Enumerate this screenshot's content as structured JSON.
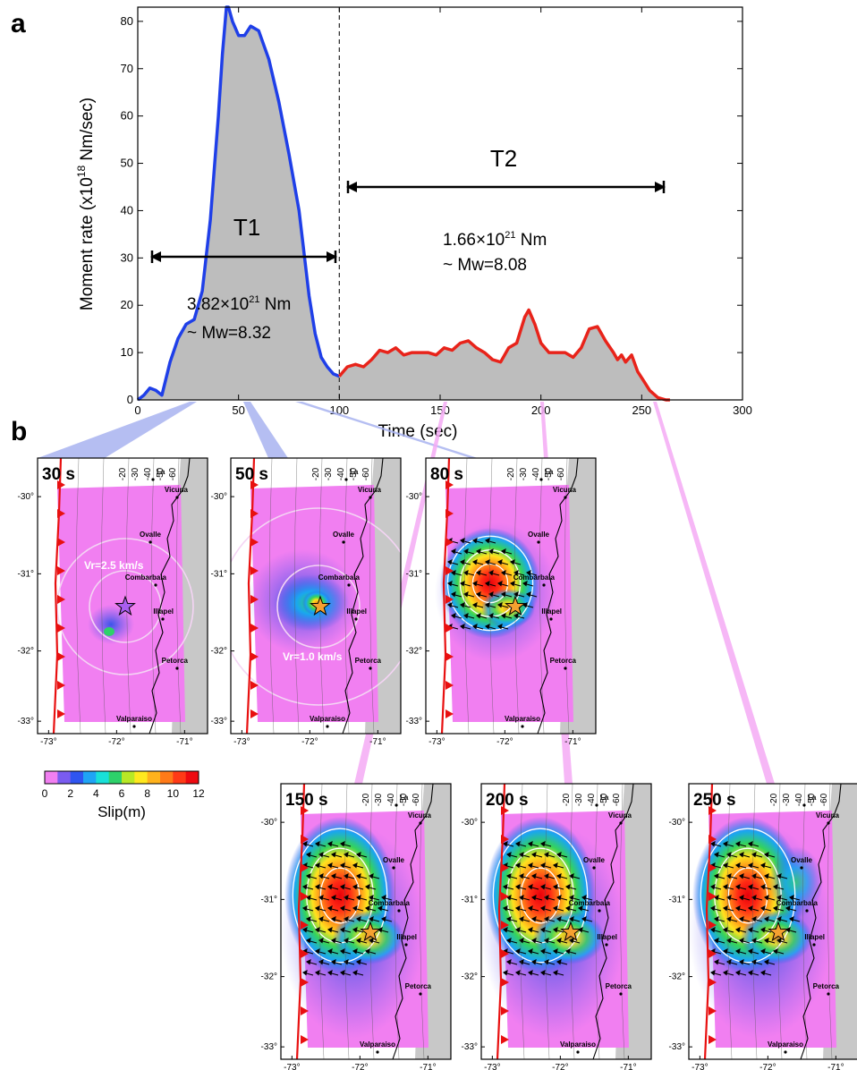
{
  "panels": {
    "a": "a",
    "b": "b"
  },
  "chart_data": {
    "type": "area",
    "xlabel": "Time (sec)",
    "ylabel_main": "Moment rate (x10",
    "ylabel_exp": "18",
    "ylabel_unit": " Nm/sec)",
    "xlim": [
      0,
      300
    ],
    "ylim": [
      0,
      83
    ],
    "xticks": [
      0,
      50,
      100,
      150,
      200,
      250,
      300
    ],
    "yticks": [
      0,
      10,
      20,
      30,
      40,
      50,
      60,
      70,
      80
    ],
    "divider_x": 100,
    "series": [
      {
        "color": "#1f3fe8",
        "x": [
          0,
          3,
          6,
          9,
          12,
          16,
          20,
          24,
          28,
          32,
          36,
          40,
          42,
          44,
          45,
          47,
          50,
          53,
          56,
          60,
          65,
          70,
          75,
          80,
          85,
          88,
          91,
          94,
          97,
          100
        ],
        "y": [
          0,
          1,
          2.5,
          2,
          1,
          8,
          13,
          16,
          17,
          23,
          38,
          60,
          73,
          83,
          83,
          80,
          77,
          77,
          79,
          78,
          72,
          63,
          52,
          40,
          22,
          14,
          9,
          7,
          5.5,
          5
        ]
      },
      {
        "color": "#e8231a",
        "x": [
          100,
          104,
          108,
          112,
          116,
          120,
          124,
          128,
          132,
          136,
          140,
          144,
          148,
          152,
          156,
          160,
          164,
          168,
          172,
          176,
          180,
          184,
          188,
          192,
          194,
          197,
          200,
          204,
          208,
          212,
          216,
          220,
          224,
          228,
          232,
          236,
          238,
          240,
          242,
          245,
          248,
          251,
          254,
          258,
          262,
          264
        ],
        "y": [
          5,
          7,
          7.5,
          7,
          8.5,
          10.5,
          10,
          11,
          9.5,
          10,
          10,
          10,
          9.5,
          11,
          10.5,
          12,
          12.5,
          11,
          10,
          8.5,
          8,
          11,
          12,
          17.5,
          19,
          16,
          12,
          10,
          10,
          10,
          9,
          11,
          15,
          15.5,
          12.5,
          10,
          8.5,
          9.5,
          8,
          9.5,
          6,
          4,
          2,
          0.5,
          0,
          0
        ]
      }
    ],
    "annotations": {
      "t1_label": "T1",
      "t2_label": "T2",
      "t1_moment": "3.82×10",
      "t1_exp": "21",
      "t1_unit": " Nm",
      "t1_mw": "~ Mw=8.32",
      "t2_moment": "1.66×10",
      "t2_exp": "21",
      "t2_unit": " Nm",
      "t2_mw": "~ Mw=8.08"
    }
  },
  "maps": {
    "x_ticks": [
      "-73°",
      "-72°",
      "-71°"
    ],
    "y_ticks": [
      "-30°",
      "-31°",
      "-32°",
      "-33°"
    ],
    "contour_labels": [
      "-20",
      "-30",
      "-40",
      "-50",
      "-60"
    ],
    "towns": {
      "vicuna": "Vicuna",
      "la": "La",
      "ovalle": "Ovalle",
      "combarbala": "Combarbala",
      "illapel": "Illapel",
      "petorca": "Petorca",
      "valparaiso": "Valparaiso"
    },
    "frames": [
      {
        "time": "30 s",
        "stage": 0,
        "vr_label": "Vr=2.5 km/s"
      },
      {
        "time": "50 s",
        "stage": 1,
        "vr_label": "Vr=1.0 km/s"
      },
      {
        "time": "80 s",
        "stage": 2
      },
      {
        "time": "150 s",
        "stage": 3
      },
      {
        "time": "200 s",
        "stage": 3
      },
      {
        "time": "250 s",
        "stage": 4
      }
    ],
    "colorbar": {
      "label": "Slip(m)",
      "ticks": [
        "0",
        "2",
        "4",
        "6",
        "8",
        "10",
        "12"
      ],
      "colors": [
        "#f17ff1",
        "#7a5cf0",
        "#2f55f0",
        "#1fa4f5",
        "#18e0d8",
        "#2ed16a",
        "#b8e826",
        "#ffe81e",
        "#ffb21c",
        "#ff7a18",
        "#ff3a16",
        "#ee0a10"
      ]
    }
  }
}
